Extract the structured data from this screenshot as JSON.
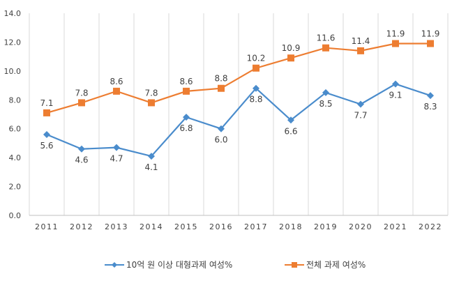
{
  "chart_data": {
    "type": "line",
    "categories": [
      "2011",
      "2012",
      "2013",
      "2014",
      "2015",
      "2016",
      "2017",
      "2018",
      "2019",
      "2020",
      "2021",
      "2022"
    ],
    "series": [
      {
        "name": "10억 원 이상 대형과제 여성%",
        "values": [
          5.6,
          4.6,
          4.7,
          4.1,
          6.8,
          6.0,
          8.8,
          6.6,
          8.5,
          7.7,
          9.1,
          8.3
        ],
        "color": "#4a8ccc",
        "marker": "diamond",
        "labels_position": "below"
      },
      {
        "name": "전체 과제 여성%",
        "values": [
          7.1,
          7.8,
          8.6,
          7.8,
          8.6,
          8.8,
          10.2,
          10.9,
          11.6,
          11.4,
          11.9,
          11.9
        ],
        "color": "#ed7d31",
        "marker": "square",
        "labels_position": "above"
      }
    ],
    "yticks": [
      "0.0",
      "2.0",
      "4.0",
      "6.0",
      "8.0",
      "10.0",
      "12.0",
      "14.0"
    ],
    "ylim": [
      0,
      14
    ],
    "grid": "vertical",
    "legend": "bottom",
    "xlabel": "",
    "ylabel": "",
    "title": ""
  }
}
